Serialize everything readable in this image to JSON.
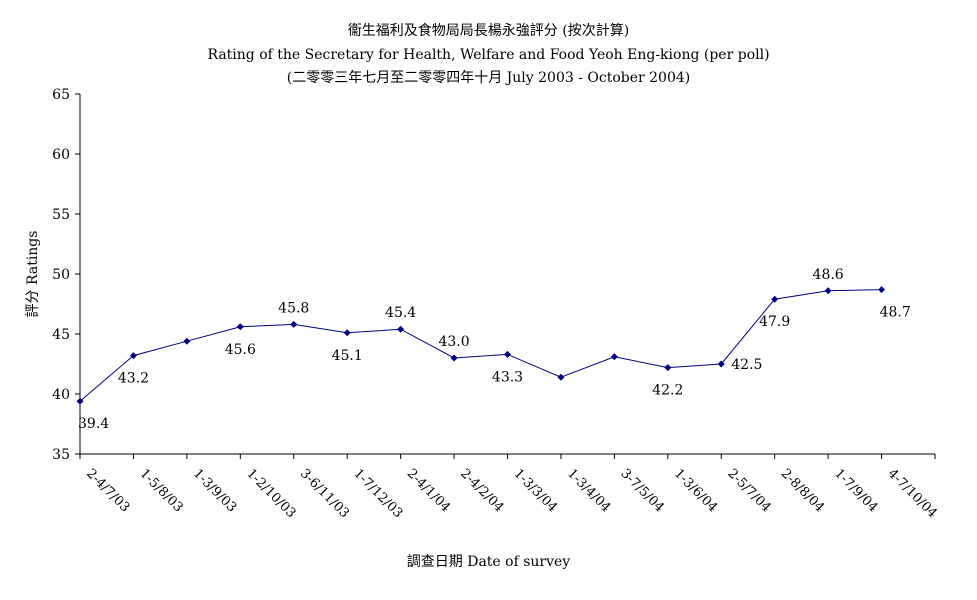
{
  "chart_data": {
    "type": "line",
    "title": "衞生福利及食物局局長楊永強評分 (按次計算)",
    "subtitle": "Rating of the Secretary for Health, Welfare and Food Yeoh Eng-kiong (per poll)",
    "subtitle2": "(二零零三年七月至二零零四年十月 July 2003 - October 2004)",
    "xlabel": "調查日期 Date of survey",
    "ylabel": "評分 Ratings",
    "ylim": [
      35,
      65
    ],
    "yticks": [
      35,
      40,
      45,
      50,
      55,
      60,
      65
    ],
    "grid": false,
    "categories": [
      "2-4/7/03",
      "1-5/8/03",
      "1-3/9/03",
      "1-2/10/03",
      "3-6/11/03",
      "1-7/12/03",
      "2-4/1/04",
      "2-4/2/04",
      "1-3/3/04",
      "1-3/4/04",
      "3-7/5/04",
      "1-3/6/04",
      "2-5/7/04",
      "2-8/8/04",
      "1-7/9/04",
      "4-7/10/04"
    ],
    "series": [
      {
        "values": [
          39.4,
          43.2,
          44.4,
          45.6,
          45.8,
          45.1,
          45.4,
          43.0,
          43.3,
          41.4,
          43.1,
          42.2,
          42.5,
          47.9,
          48.6,
          48.7
        ],
        "data_labels": [
          "39.4",
          "43.2",
          "",
          "45.6",
          "45.8",
          "45.1",
          "45.4",
          "43.0",
          "43.3",
          "",
          "",
          "42.2",
          "42.5",
          "47.9",
          "48.6",
          "48.7"
        ],
        "label_position": [
          "below",
          "below",
          "",
          "below",
          "above",
          "below",
          "above",
          "above",
          "below",
          "",
          "",
          "below",
          "right",
          "below",
          "above",
          "below"
        ],
        "color": "#00007f"
      }
    ]
  }
}
